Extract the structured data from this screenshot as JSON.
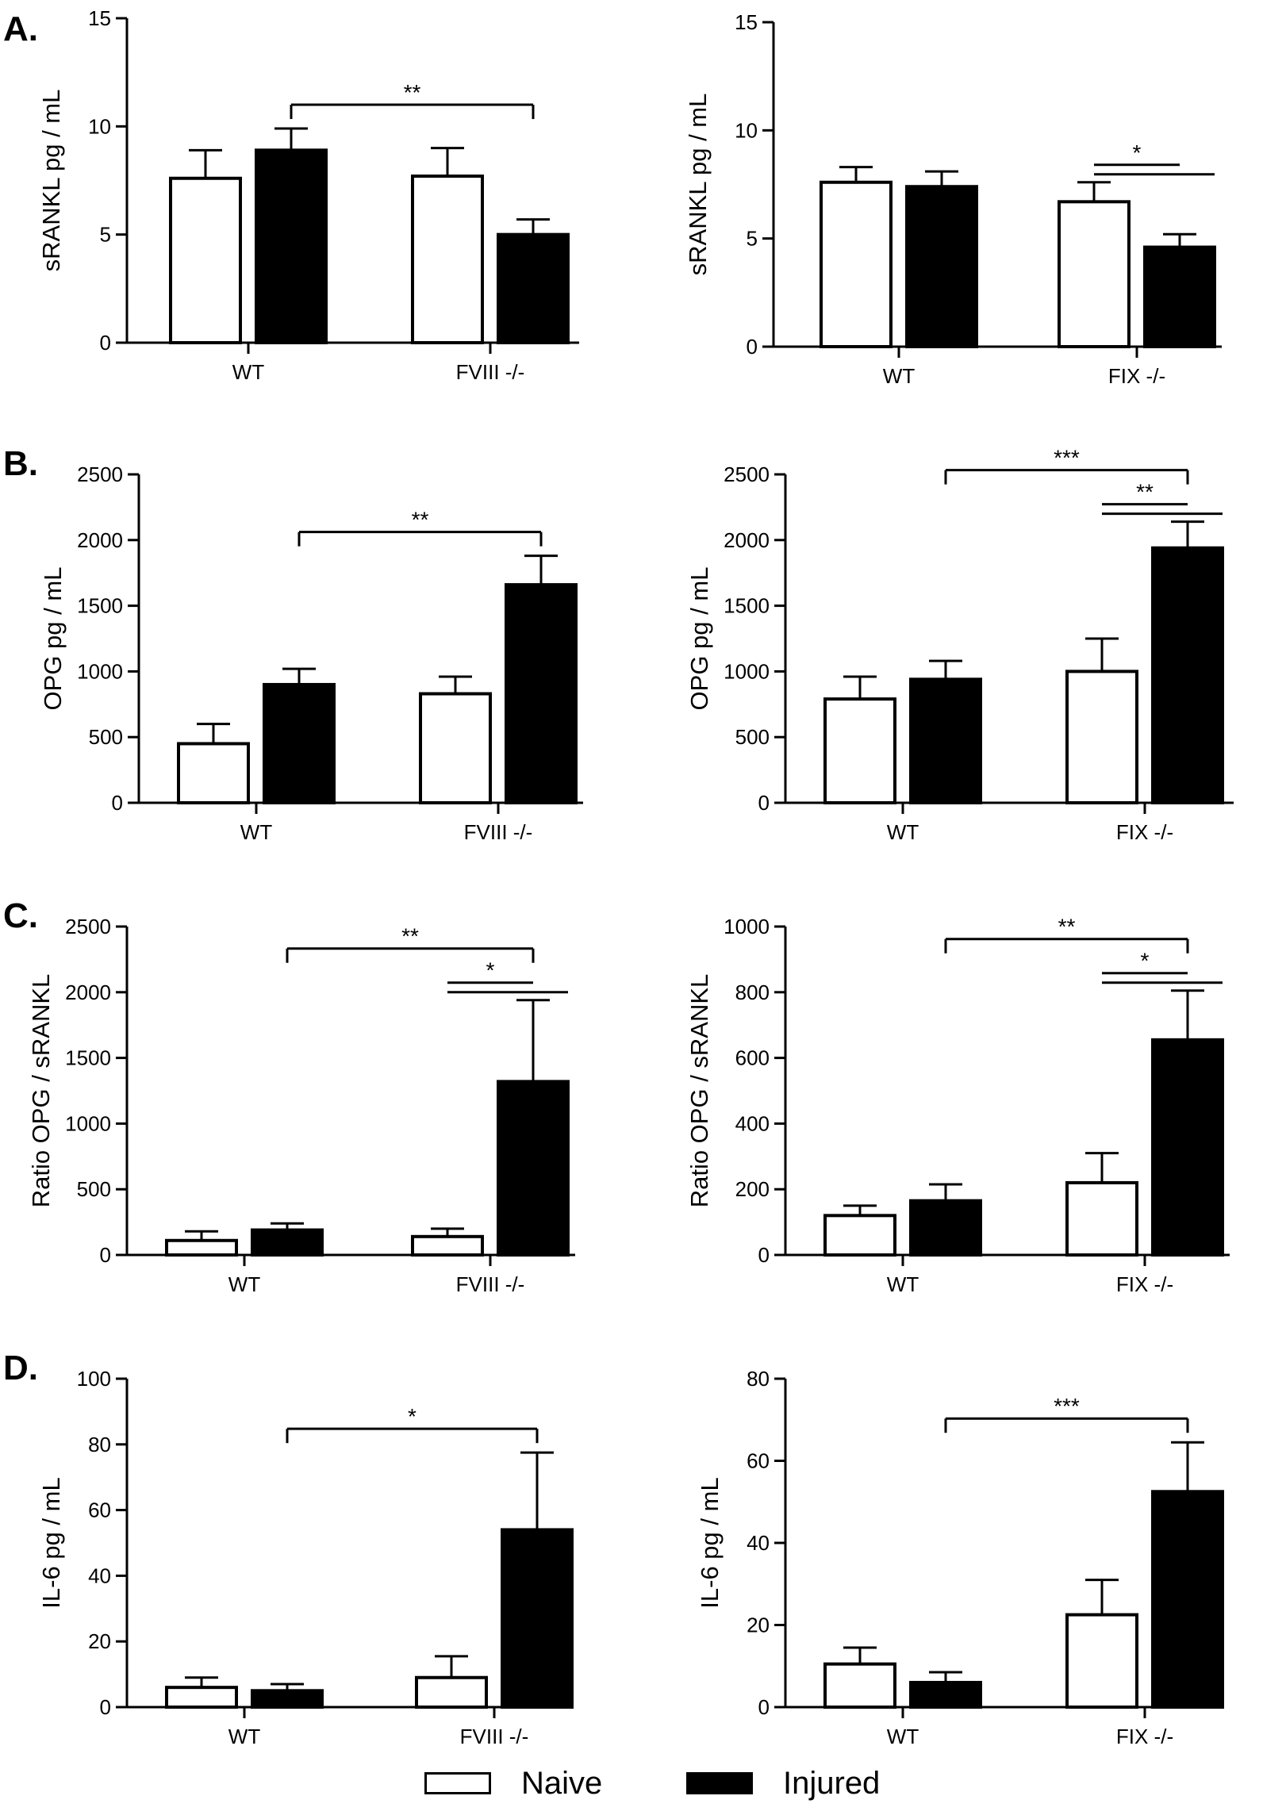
{
  "panel_letters": {
    "A": "A.",
    "B": "B.",
    "C": "C.",
    "D": "D."
  },
  "legend": {
    "naive_label": "Naive",
    "injured_label": "Injured",
    "naive_color": "#ffffff",
    "injured_color": "#000000"
  },
  "chart_data": [
    {
      "id": "A-left",
      "panel": "A",
      "type": "bar",
      "ylabel": "sRANKL pg / mL",
      "ylim": [
        0,
        15
      ],
      "yticks": [
        0,
        5,
        10,
        15
      ],
      "categories": [
        "WT",
        "FVIII -/-"
      ],
      "series": [
        {
          "name": "Naive",
          "values": [
            7.6,
            7.7
          ],
          "errors": [
            1.3,
            1.3
          ]
        },
        {
          "name": "Injured",
          "values": [
            8.9,
            5.0
          ],
          "errors": [
            1.0,
            0.7
          ]
        }
      ],
      "significance": [
        {
          "from": [
            0,
            1
          ],
          "to": [
            1,
            1
          ],
          "label": "**"
        }
      ]
    },
    {
      "id": "A-right",
      "panel": "A",
      "type": "bar",
      "ylabel": "sRANKL pg / mL",
      "ylim": [
        0,
        15
      ],
      "yticks": [
        0,
        5,
        10,
        15
      ],
      "categories": [
        "WT",
        "FIX -/-"
      ],
      "series": [
        {
          "name": "Naive",
          "values": [
            7.6,
            6.7
          ],
          "errors": [
            0.7,
            0.9
          ]
        },
        {
          "name": "Injured",
          "values": [
            7.4,
            4.6
          ],
          "errors": [
            0.7,
            0.6
          ]
        }
      ],
      "significance": [
        {
          "from": [
            1,
            0
          ],
          "to": [
            1,
            1
          ],
          "label": "*"
        }
      ]
    },
    {
      "id": "B-left",
      "panel": "B",
      "type": "bar",
      "ylabel": "OPG pg / mL",
      "ylim": [
        0,
        2500
      ],
      "yticks": [
        0,
        500,
        1000,
        1500,
        2000,
        2500
      ],
      "categories": [
        "WT",
        "FVIII -/-"
      ],
      "series": [
        {
          "name": "Naive",
          "values": [
            450,
            830
          ],
          "errors": [
            150,
            130
          ]
        },
        {
          "name": "Injured",
          "values": [
            900,
            1660
          ],
          "errors": [
            120,
            220
          ]
        }
      ],
      "significance": [
        {
          "from": [
            0,
            1
          ],
          "to": [
            1,
            1
          ],
          "label": "**"
        }
      ]
    },
    {
      "id": "B-right",
      "panel": "B",
      "type": "bar",
      "ylabel": "OPG pg / mL",
      "ylim": [
        0,
        2500
      ],
      "yticks": [
        0,
        500,
        1000,
        1500,
        2000,
        2500
      ],
      "categories": [
        "WT",
        "FIX -/-"
      ],
      "series": [
        {
          "name": "Naive",
          "values": [
            790,
            1000
          ],
          "errors": [
            170,
            250
          ]
        },
        {
          "name": "Injured",
          "values": [
            940,
            1940
          ],
          "errors": [
            140,
            200
          ]
        }
      ],
      "significance": [
        {
          "from": [
            0,
            1
          ],
          "to": [
            1,
            1
          ],
          "label": "***"
        },
        {
          "from": [
            1,
            0
          ],
          "to": [
            1,
            1
          ],
          "label": "**"
        }
      ]
    },
    {
      "id": "C-left",
      "panel": "C",
      "type": "bar",
      "ylabel": "Ratio OPG / sRANKL",
      "ylim": [
        0,
        2500
      ],
      "yticks": [
        0,
        500,
        1000,
        1500,
        2000,
        2500
      ],
      "categories": [
        "WT",
        "FVIII -/-"
      ],
      "series": [
        {
          "name": "Naive",
          "values": [
            110,
            140
          ],
          "errors": [
            70,
            60
          ]
        },
        {
          "name": "Injured",
          "values": [
            190,
            1320
          ],
          "errors": [
            50,
            620
          ]
        }
      ],
      "significance": [
        {
          "from": [
            0,
            1
          ],
          "to": [
            1,
            1
          ],
          "label": "**"
        },
        {
          "from": [
            1,
            0
          ],
          "to": [
            1,
            1
          ],
          "label": "*"
        }
      ]
    },
    {
      "id": "C-right",
      "panel": "C",
      "type": "bar",
      "ylabel": "Ratio OPG / sRANKL",
      "ylim": [
        0,
        1000
      ],
      "yticks": [
        0,
        200,
        400,
        600,
        800,
        1000
      ],
      "categories": [
        "WT",
        "FIX -/-"
      ],
      "series": [
        {
          "name": "Naive",
          "values": [
            120,
            220
          ],
          "errors": [
            30,
            90
          ]
        },
        {
          "name": "Injured",
          "values": [
            165,
            655
          ],
          "errors": [
            50,
            150
          ]
        }
      ],
      "significance": [
        {
          "from": [
            0,
            1
          ],
          "to": [
            1,
            1
          ],
          "label": "**"
        },
        {
          "from": [
            1,
            0
          ],
          "to": [
            1,
            1
          ],
          "label": "*"
        }
      ]
    },
    {
      "id": "D-left",
      "panel": "D",
      "type": "bar",
      "ylabel": "IL-6 pg / mL",
      "ylim": [
        0,
        100
      ],
      "yticks": [
        0,
        20,
        40,
        60,
        80,
        100
      ],
      "categories": [
        "WT",
        "FVIII -/-"
      ],
      "series": [
        {
          "name": "Naive",
          "values": [
            6,
            9
          ],
          "errors": [
            3,
            6.5
          ]
        },
        {
          "name": "Injured",
          "values": [
            5,
            54
          ],
          "errors": [
            2,
            23.5
          ]
        }
      ],
      "significance": [
        {
          "from": [
            0,
            1
          ],
          "to": [
            1,
            1
          ],
          "label": "*"
        }
      ]
    },
    {
      "id": "D-right",
      "panel": "D",
      "type": "bar",
      "ylabel": "IL-6 pg / mL",
      "ylim": [
        0,
        80
      ],
      "yticks": [
        0,
        20,
        40,
        60,
        80
      ],
      "categories": [
        "WT",
        "FIX -/-"
      ],
      "series": [
        {
          "name": "Naive",
          "values": [
            10.5,
            22.5
          ],
          "errors": [
            4,
            8.5
          ]
        },
        {
          "name": "Injured",
          "values": [
            6,
            52.5
          ],
          "errors": [
            2.5,
            12
          ]
        }
      ],
      "significance": [
        {
          "from": [
            0,
            1
          ],
          "to": [
            1,
            1
          ],
          "label": "***"
        }
      ]
    }
  ]
}
